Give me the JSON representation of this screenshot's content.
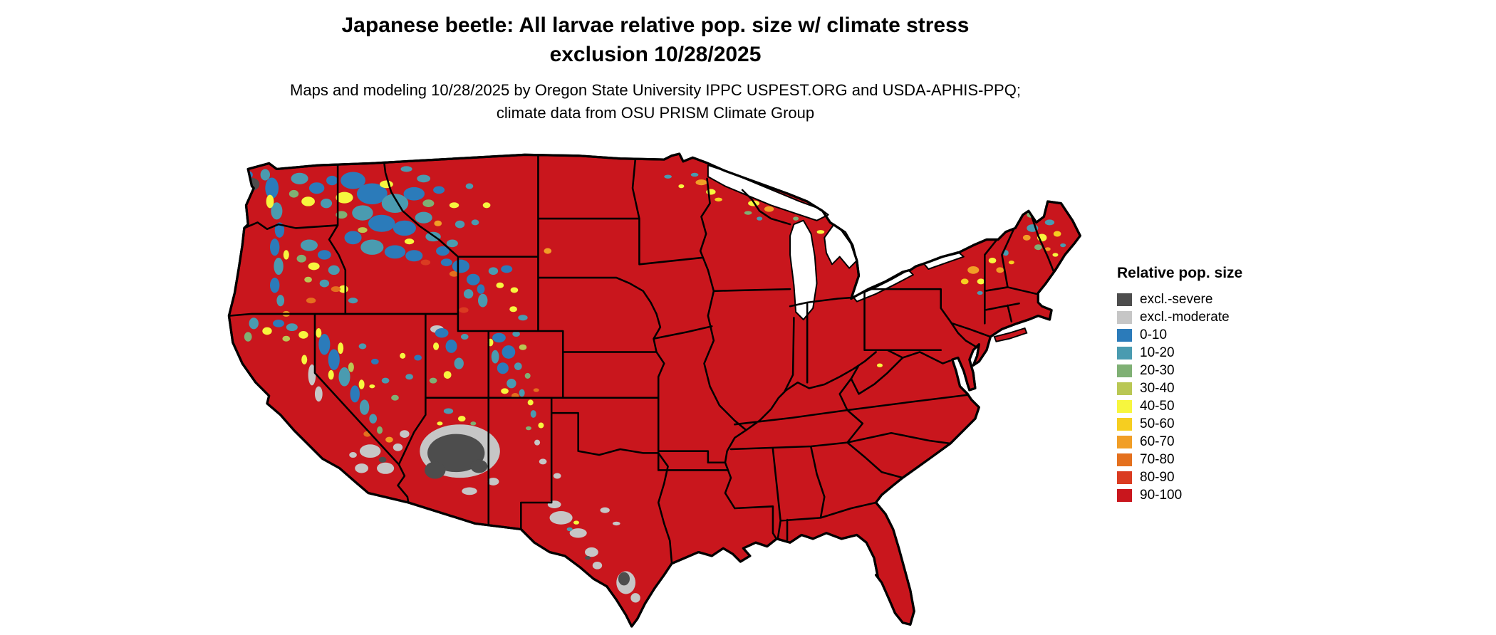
{
  "title": "Japanese beetle: All larvae relative pop. size w/ climate stress exclusion 10/28/2025",
  "subtitle": "Maps and modeling 10/28/2025 by Oregon State University IPPC USPEST.ORG and USDA-APHIS-PPQ; climate data from OSU PRISM Climate Group",
  "legend": {
    "title": "Relative pop. size",
    "items": [
      {
        "label": "excl.-severe",
        "color": "#4d4d4d"
      },
      {
        "label": "excl.-moderate",
        "color": "#c6c6c6"
      },
      {
        "label": "0-10",
        "color": "#2b7bba"
      },
      {
        "label": "10-20",
        "color": "#4a9bb0"
      },
      {
        "label": "20-30",
        "color": "#7fb074"
      },
      {
        "label": "30-40",
        "color": "#b9c754"
      },
      {
        "label": "40-50",
        "color": "#f7f63e"
      },
      {
        "label": "50-60",
        "color": "#f6ce20"
      },
      {
        "label": "60-70",
        "color": "#f19e26"
      },
      {
        "label": "70-80",
        "color": "#e4701e"
      },
      {
        "label": "80-90",
        "color": "#da3b21"
      },
      {
        "label": "90-100",
        "color": "#c9161d"
      }
    ]
  },
  "map": {
    "base_color": "#c9161d",
    "border_color": "#000000",
    "water_color": "#ffffff",
    "background_color": "#ffffff"
  }
}
